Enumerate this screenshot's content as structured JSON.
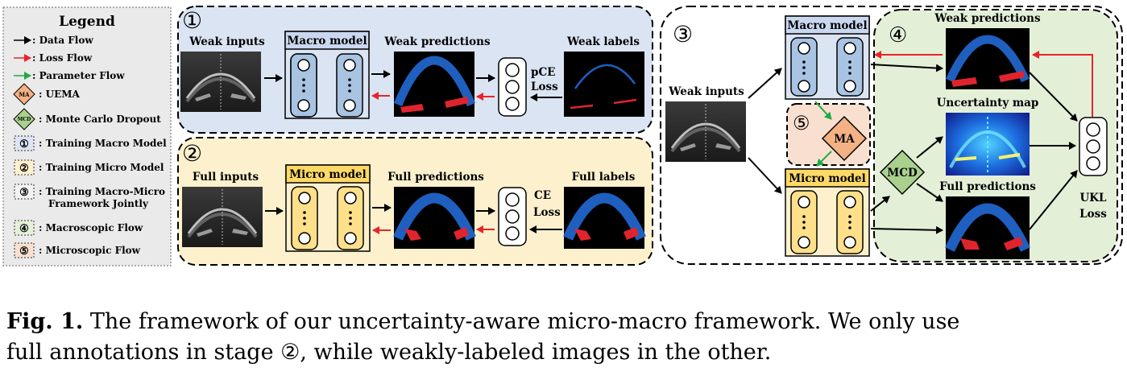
{
  "legend": {
    "title": "Legend",
    "items": [
      {
        "marker": "black-arrow-icon",
        "text": ": Data Flow"
      },
      {
        "marker": "red-arrow-icon",
        "text": ": Loss Flow"
      },
      {
        "marker": "green-arrow-icon",
        "text": ": Parameter Flow"
      },
      {
        "marker": "MA",
        "text": ": UEMA"
      },
      {
        "marker": "MCD",
        "text": ": Monte Carlo Dropout"
      },
      {
        "marker": "①",
        "text": ": Training Macro Model"
      },
      {
        "marker": "②",
        "text": ": Training Micro Model"
      },
      {
        "marker": "③",
        "text": ": Training Macro-Micro",
        "text2": "Framework Jointly"
      },
      {
        "marker": "④",
        "text": ": Macroscopic Flow"
      },
      {
        "marker": "⑤",
        "text": ": Microscopic Flow"
      }
    ]
  },
  "stage1": {
    "number": "①",
    "weak_inputs": "Weak inputs",
    "macro_model": "Macro model",
    "weak_predictions": "Weak predictions",
    "weak_labels": "Weak labels",
    "loss_line1": "pCE",
    "loss_line2": "Loss"
  },
  "stage2": {
    "number": "②",
    "full_inputs": "Full inputs",
    "micro_model": "Micro model",
    "full_predictions": "Full predictions",
    "full_labels": "Full labels",
    "loss_line1": "CE",
    "loss_line2": "Loss"
  },
  "stage3": {
    "number": "③",
    "weak_inputs": "Weak inputs",
    "macro_model": "Macro model",
    "micro_model": "Micro model",
    "flow4": "④",
    "flow5": "⑤",
    "ma": "MA",
    "mcd": "MCD",
    "weak_predictions": "Weak predictions",
    "uncertainty_map": "Uncertainty map",
    "full_predictions": "Full predictions",
    "loss_line1": "UKL",
    "loss_line2": "Loss"
  },
  "caption": {
    "label": "Fig. 1.",
    "line1": "The framework of our uncertainty-aware micro-macro framework. We only use",
    "line2": "full annotations in stage ②, while weakly-labeled images in the other."
  },
  "colors": {
    "stage1_bg": "#dbe4f3",
    "stage2_bg": "#fdf1cd",
    "macro_fill": "#a8c4e2",
    "micro_fill": "#ffe08a",
    "stage4_bg": "#e4efd8",
    "stage5_bg": "#f8dfd0",
    "ma_fill": "#f4b183",
    "mcd_fill": "#a9d18e",
    "pred_blue": "#1f5fbf",
    "pred_red": "#e0242e",
    "loss_arrow": "#e8242a",
    "param_arrow": "#22aa44"
  }
}
